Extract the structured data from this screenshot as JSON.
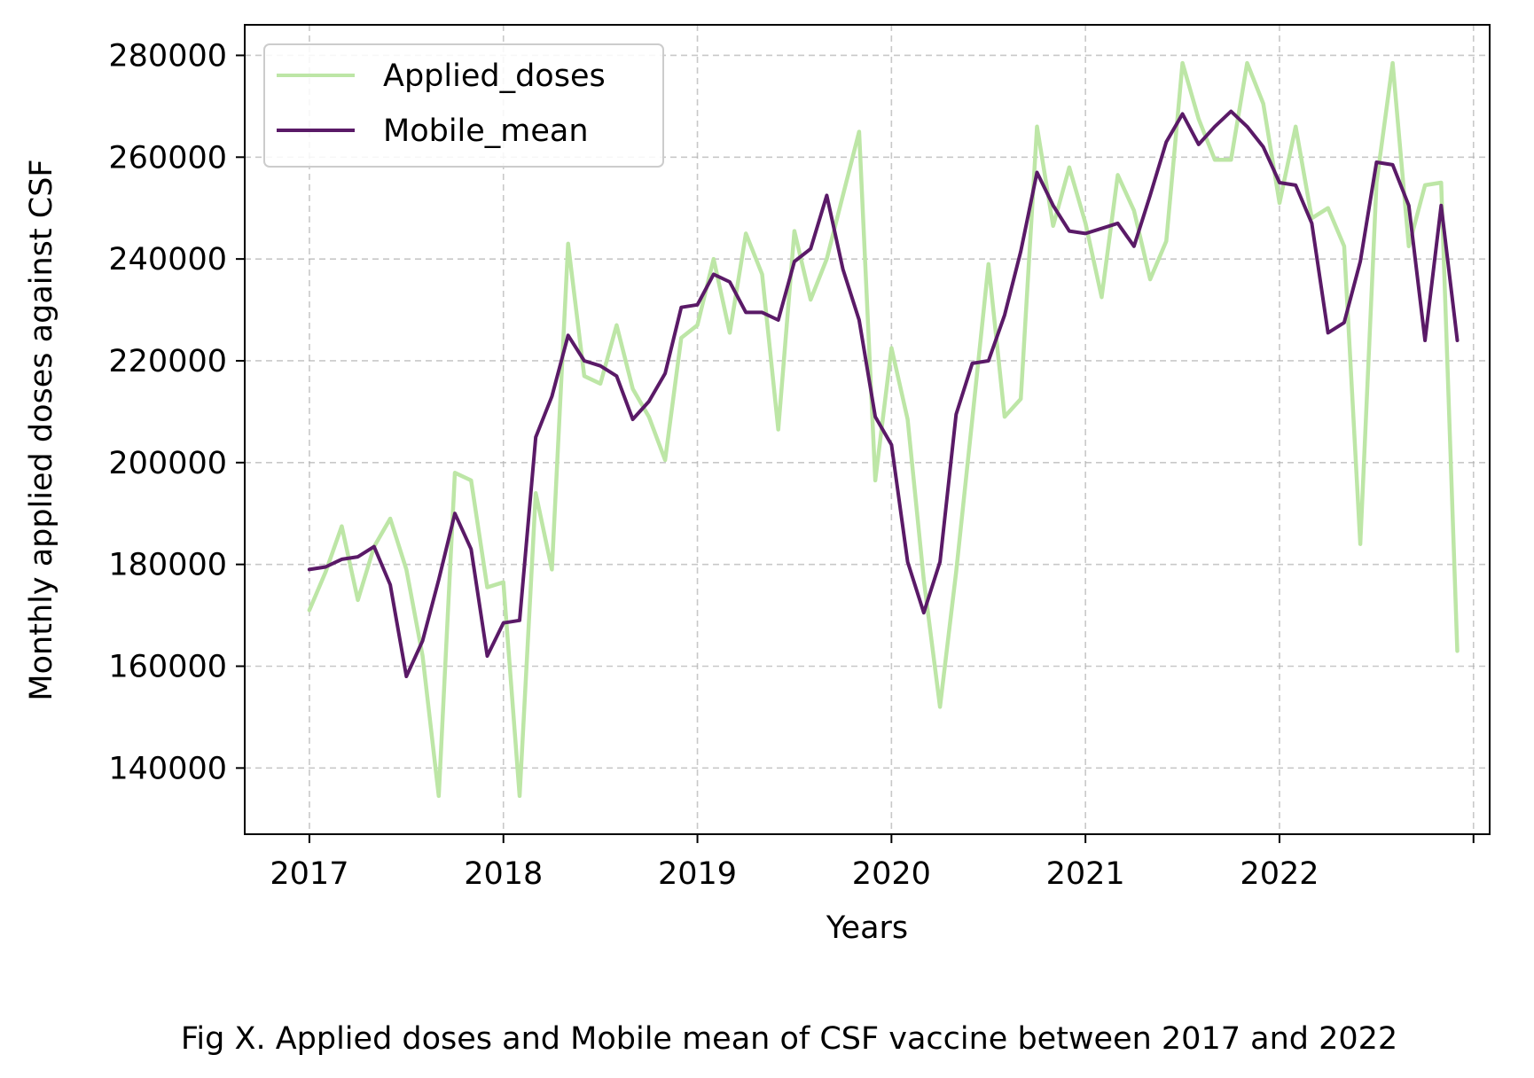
{
  "caption": "Fig X. Applied doses and Mobile mean of CSF vaccine between 2017 and 2022",
  "chart_data": {
    "type": "line",
    "xlabel": "Years",
    "ylabel": "Monthly applied doses against CSF",
    "x_tick_labels": [
      "2017",
      "2018",
      "2019",
      "2020",
      "2021",
      "2022"
    ],
    "y_tick_labels": [
      "140000",
      "160000",
      "180000",
      "200000",
      "220000",
      "240000",
      "260000",
      "280000"
    ],
    "xlim": [
      "2016-09",
      "2023-02"
    ],
    "ylim": [
      127000,
      286000
    ],
    "grid": true,
    "legend_position": "top-left",
    "x": [
      "2017-01",
      "2017-02",
      "2017-03",
      "2017-04",
      "2017-05",
      "2017-06",
      "2017-07",
      "2017-08",
      "2017-09",
      "2017-10",
      "2017-11",
      "2017-12",
      "2018-01",
      "2018-02",
      "2018-03",
      "2018-04",
      "2018-05",
      "2018-06",
      "2018-07",
      "2018-08",
      "2018-09",
      "2018-10",
      "2018-11",
      "2018-12",
      "2019-01",
      "2019-02",
      "2019-03",
      "2019-04",
      "2019-05",
      "2019-06",
      "2019-07",
      "2019-08",
      "2019-09",
      "2019-10",
      "2019-11",
      "2019-12",
      "2020-01",
      "2020-02",
      "2020-03",
      "2020-04",
      "2020-05",
      "2020-06",
      "2020-07",
      "2020-08",
      "2020-09",
      "2020-10",
      "2020-11",
      "2020-12",
      "2021-01",
      "2021-02",
      "2021-03",
      "2021-04",
      "2021-05",
      "2021-06",
      "2021-07",
      "2021-08",
      "2021-09",
      "2021-10",
      "2021-11",
      "2021-12",
      "2022-01",
      "2022-02",
      "2022-03",
      "2022-04",
      "2022-05",
      "2022-06",
      "2022-07",
      "2022-08",
      "2022-09",
      "2022-10",
      "2022-11",
      "2022-12"
    ],
    "series": [
      {
        "name": "Applied_doses",
        "color": "#bde6a6",
        "values": [
          171000,
          178500,
          187500,
          173000,
          183500,
          189000,
          179000,
          162000,
          134500,
          198000,
          196500,
          175500,
          176500,
          134500,
          194000,
          179000,
          243000,
          217000,
          215500,
          227000,
          214500,
          209000,
          200500,
          224500,
          227000,
          240000,
          225500,
          245000,
          237000,
          206500,
          245500,
          232000,
          240000,
          252500,
          265000,
          196500,
          222500,
          208500,
          177000,
          152000,
          178500,
          208500,
          239000,
          209000,
          212500,
          266000,
          246500,
          258000,
          247000,
          232500,
          256500,
          249500,
          236000,
          243500,
          278500,
          267500,
          259500,
          259500,
          278500,
          270500,
          251000,
          266000,
          248000,
          250000,
          242500,
          184000,
          255000,
          278500,
          242500,
          254500,
          255000,
          163000
        ]
      },
      {
        "name": "Mobile_mean",
        "color": "#5a1a67",
        "values": [
          179000,
          179500,
          181000,
          181500,
          183500,
          176000,
          158000,
          165000,
          177000,
          190000,
          183000,
          162000,
          168500,
          169000,
          205000,
          213000,
          225000,
          220000,
          219000,
          217000,
          208500,
          212000,
          217500,
          230500,
          231000,
          237000,
          235500,
          229500,
          229500,
          228000,
          239500,
          242000,
          252500,
          238000,
          228000,
          209000,
          203500,
          180500,
          170500,
          180500,
          209500,
          219500,
          220000,
          229000,
          241500,
          257000,
          250500,
          245500,
          245000,
          246000,
          247000,
          242500,
          252500,
          263000,
          268500,
          262500,
          266000,
          269000,
          266000,
          262000,
          255000,
          254500,
          247000,
          225500,
          227500,
          239500,
          259000,
          258500,
          250500,
          224000,
          250500,
          224000
        ]
      }
    ]
  }
}
